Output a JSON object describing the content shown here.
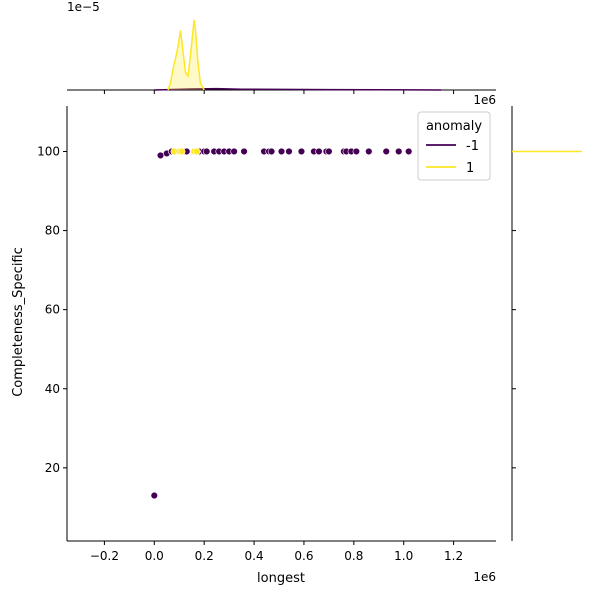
{
  "chart_data": {
    "type": "scatter",
    "title": "",
    "xlabel": "longest",
    "ylabel": "Completeness_Specific",
    "x_offset_label": "1e6",
    "y_offset_label_right": "1e6",
    "top_margin_offset_label": "1e−5",
    "x_scale": 1000000,
    "xlim": [
      -0.35,
      1.37
    ],
    "ylim": [
      1.5,
      111.5
    ],
    "x_ticks": [
      {
        "value": -0.2,
        "label": "−0.2"
      },
      {
        "value": 0.0,
        "label": "0.0"
      },
      {
        "value": 0.2,
        "label": "0.2"
      },
      {
        "value": 0.4,
        "label": "0.4"
      },
      {
        "value": 0.6,
        "label": "0.6"
      },
      {
        "value": 0.8,
        "label": "0.8"
      },
      {
        "value": 1.0,
        "label": "1.0"
      },
      {
        "value": 1.2,
        "label": "1.2"
      }
    ],
    "y_ticks": [
      {
        "value": 20,
        "label": "20"
      },
      {
        "value": 40,
        "label": "40"
      },
      {
        "value": 60,
        "label": "60"
      },
      {
        "value": 80,
        "label": "80"
      },
      {
        "value": 100,
        "label": "100"
      }
    ],
    "grid": false,
    "legend": {
      "title": "anomaly",
      "placement": "upper-right"
    },
    "series": [
      {
        "name": "-1",
        "color": "#440154",
        "points": [
          {
            "x": 0.0,
            "y": 13
          },
          {
            "x": 0.025,
            "y": 99
          },
          {
            "x": 0.05,
            "y": 99.5
          },
          {
            "x": 0.07,
            "y": 100
          },
          {
            "x": 0.12,
            "y": 100
          },
          {
            "x": 0.13,
            "y": 100
          },
          {
            "x": 0.18,
            "y": 100
          },
          {
            "x": 0.2,
            "y": 100
          },
          {
            "x": 0.21,
            "y": 100
          },
          {
            "x": 0.24,
            "y": 100
          },
          {
            "x": 0.26,
            "y": 100
          },
          {
            "x": 0.28,
            "y": 100
          },
          {
            "x": 0.3,
            "y": 100
          },
          {
            "x": 0.32,
            "y": 100
          },
          {
            "x": 0.36,
            "y": 100
          },
          {
            "x": 0.44,
            "y": 100
          },
          {
            "x": 0.46,
            "y": 100
          },
          {
            "x": 0.47,
            "y": 100
          },
          {
            "x": 0.51,
            "y": 100
          },
          {
            "x": 0.54,
            "y": 100
          },
          {
            "x": 0.59,
            "y": 100
          },
          {
            "x": 0.64,
            "y": 100
          },
          {
            "x": 0.66,
            "y": 100
          },
          {
            "x": 0.69,
            "y": 100
          },
          {
            "x": 0.7,
            "y": 100
          },
          {
            "x": 0.76,
            "y": 100
          },
          {
            "x": 0.77,
            "y": 100
          },
          {
            "x": 0.79,
            "y": 100
          },
          {
            "x": 0.81,
            "y": 100
          },
          {
            "x": 0.86,
            "y": 100
          },
          {
            "x": 0.93,
            "y": 100
          },
          {
            "x": 0.98,
            "y": 100
          },
          {
            "x": 1.02,
            "y": 100
          }
        ]
      },
      {
        "name": "1",
        "color": "#fde725",
        "points": [
          {
            "x": 0.08,
            "y": 100
          },
          {
            "x": 0.1,
            "y": 100
          },
          {
            "x": 0.11,
            "y": 100
          },
          {
            "x": 0.16,
            "y": 100
          },
          {
            "x": 0.17,
            "y": 100
          }
        ]
      }
    ],
    "marginal_x": {
      "series": [
        {
          "name": "-1",
          "color": "#440154",
          "x": [
            0.0,
            0.15,
            0.25,
            0.35,
            0.5,
            0.7,
            0.9,
            1.05,
            1.15
          ],
          "density": [
            0.0,
            0.015,
            0.02,
            0.012,
            0.008,
            0.006,
            0.004,
            0.002,
            0.0
          ]
        },
        {
          "name": "1",
          "color": "#fde725",
          "x": [
            0.055,
            0.065,
            0.075,
            0.085,
            0.095,
            0.105,
            0.115,
            0.125,
            0.135,
            0.145,
            0.155,
            0.16,
            0.165,
            0.175,
            0.185,
            0.2
          ],
          "density": [
            0.0,
            0.1,
            0.3,
            0.45,
            0.62,
            0.85,
            0.55,
            0.25,
            0.2,
            0.5,
            0.85,
            1.0,
            0.85,
            0.4,
            0.1,
            0.0
          ]
        }
      ]
    },
    "marginal_y": {
      "series": [
        {
          "name": "1",
          "color": "#fde725",
          "y": 100
        }
      ]
    }
  }
}
